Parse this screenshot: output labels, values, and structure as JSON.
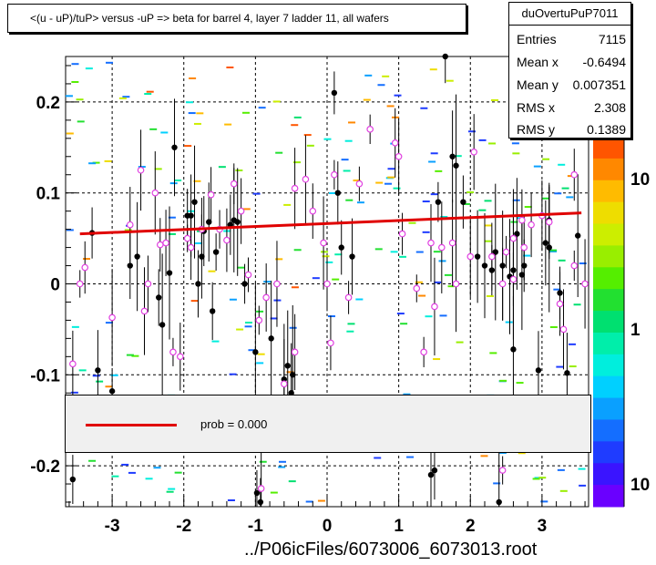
{
  "chart_data": {
    "type": "scatter",
    "title": "<(u - uP)/tuP> versus  -uP => beta for barrel 4, layer 7 ladder 11, all wafers",
    "xlabel": "../P06icFiles/6073006_6073013.root",
    "ylabel": "",
    "xlim": [
      -3.65,
      3.65
    ],
    "ylim": [
      -0.245,
      0.25
    ],
    "xticks": [
      -3,
      -2,
      -1,
      0,
      1,
      2,
      3
    ],
    "yticks": [
      -0.2,
      -0.1,
      0,
      0.1,
      0.2
    ],
    "xtick_labels": [
      "-3",
      "-2",
      "-1",
      "0",
      "1",
      "2",
      "3"
    ],
    "ytick_labels": [
      "-0.2",
      "-0.1",
      "0",
      "0.1",
      "0.2"
    ],
    "grid": true,
    "z_scale": "log",
    "z_tick_labels": [
      "10",
      "1",
      "10"
    ],
    "palette": [
      "#6a00ff",
      "#3a14ff",
      "#1f3cff",
      "#146eff",
      "#0aa0ff",
      "#00d0ff",
      "#00eedd",
      "#00eeaa",
      "#00e070",
      "#22e030",
      "#55ee00",
      "#99ee00",
      "#ccee00",
      "#eedd00",
      "#ffbb00",
      "#ff8800",
      "#ff5500"
    ],
    "fit_line": {
      "x": [
        -3.45,
        3.55
      ],
      "y": [
        0.055,
        0.078
      ],
      "color": "#e00000"
    },
    "black_points": [
      [
        -3.28,
        0.056
      ],
      [
        -3.55,
        -0.215
      ],
      [
        -3.2,
        -0.095
      ],
      [
        -3.0,
        -0.118
      ],
      [
        -2.75,
        0.02
      ],
      [
        -2.65,
        0.03
      ],
      [
        -2.35,
        -0.015
      ],
      [
        -2.3,
        -0.045
      ],
      [
        -2.2,
        0.012
      ],
      [
        -2.13,
        0.15
      ],
      [
        -1.95,
        0.075
      ],
      [
        -1.9,
        0.075
      ],
      [
        -1.85,
        0.09
      ],
      [
        -1.8,
        0.0
      ],
      [
        -1.75,
        0.03
      ],
      [
        -1.72,
        0.058
      ],
      [
        -1.65,
        0.068
      ],
      [
        -1.6,
        -0.03
      ],
      [
        -1.55,
        0.035
      ],
      [
        -1.35,
        0.065
      ],
      [
        -1.3,
        0.07
      ],
      [
        -1.25,
        0.068
      ],
      [
        -1.15,
        0.0
      ],
      [
        -1.0,
        -0.075
      ],
      [
        -0.98,
        -0.23
      ],
      [
        -0.93,
        -0.24
      ],
      [
        -0.78,
        -0.06
      ],
      [
        -0.6,
        -0.105
      ],
      [
        -0.55,
        -0.09
      ],
      [
        -0.5,
        -0.12
      ],
      [
        -0.48,
        -0.1
      ],
      [
        0.1,
        0.21
      ],
      [
        0.15,
        0.1
      ],
      [
        0.2,
        0.04
      ],
      [
        0.35,
        0.03
      ],
      [
        1.45,
        -0.21
      ],
      [
        1.5,
        -0.205
      ],
      [
        1.55,
        0.09
      ],
      [
        1.65,
        0.25
      ],
      [
        1.75,
        0.14
      ],
      [
        1.8,
        0.13
      ],
      [
        1.9,
        0.09
      ],
      [
        2.1,
        0.03
      ],
      [
        2.2,
        0.02
      ],
      [
        2.3,
        0.015
      ],
      [
        2.35,
        0.035
      ],
      [
        2.45,
        0.02
      ],
      [
        2.55,
        0.008
      ],
      [
        2.6,
        0.015
      ],
      [
        2.65,
        0.055
      ],
      [
        2.75,
        0.02
      ],
      [
        2.95,
        -0.095
      ],
      [
        3.05,
        0.045
      ],
      [
        3.1,
        0.07
      ],
      [
        3.25,
        -0.01
      ],
      [
        3.35,
        -0.098
      ],
      [
        3.5,
        0.053
      ],
      [
        2.6,
        -0.072
      ],
      [
        2.72,
        0.01
      ],
      [
        2.4,
        -0.24
      ],
      [
        3.1,
        0.04
      ]
    ],
    "magenta_points": [
      [
        -3.55,
        -0.088
      ],
      [
        -3.45,
        0.0
      ],
      [
        -3.38,
        0.018
      ],
      [
        -3.0,
        -0.037
      ],
      [
        -2.75,
        0.065
      ],
      [
        -2.6,
        0.125
      ],
      [
        -2.55,
        -0.03
      ],
      [
        -2.5,
        0.0
      ],
      [
        -2.4,
        0.1
      ],
      [
        -2.33,
        0.043
      ],
      [
        -2.25,
        0.045
      ],
      [
        -2.15,
        -0.075
      ],
      [
        -2.05,
        -0.08
      ],
      [
        -1.95,
        0.05
      ],
      [
        -1.9,
        0.04
      ],
      [
        -1.75,
        0.06
      ],
      [
        -1.62,
        0.098
      ],
      [
        -1.5,
        0.06
      ],
      [
        -1.4,
        0.048
      ],
      [
        -1.3,
        0.11
      ],
      [
        -1.2,
        0.08
      ],
      [
        -1.1,
        0.01
      ],
      [
        -0.95,
        -0.04
      ],
      [
        -0.92,
        -0.225
      ],
      [
        -0.85,
        -0.015
      ],
      [
        -0.7,
        0.0
      ],
      [
        -0.6,
        -0.11
      ],
      [
        -0.45,
        -0.075
      ],
      [
        -0.45,
        0.105
      ],
      [
        -0.3,
        0.115
      ],
      [
        -0.2,
        0.08
      ],
      [
        -0.05,
        0.045
      ],
      [
        0.0,
        0.0
      ],
      [
        0.05,
        -0.065
      ],
      [
        0.1,
        0.12
      ],
      [
        0.3,
        -0.015
      ],
      [
        0.45,
        0.11
      ],
      [
        0.6,
        0.17
      ],
      [
        0.95,
        0.155
      ],
      [
        1.0,
        0.14
      ],
      [
        1.05,
        0.055
      ],
      [
        1.25,
        -0.005
      ],
      [
        1.35,
        -0.075
      ],
      [
        1.45,
        0.045
      ],
      [
        1.5,
        -0.025
      ],
      [
        1.6,
        0.04
      ],
      [
        1.75,
        0.045
      ],
      [
        1.8,
        0.0
      ],
      [
        2.0,
        0.03
      ],
      [
        2.3,
        0.03
      ],
      [
        2.45,
        0.0
      ],
      [
        2.5,
        0.035
      ],
      [
        2.6,
        0.005
      ],
      [
        2.72,
        0.07
      ],
      [
        2.75,
        0.04
      ],
      [
        2.85,
        0.065
      ],
      [
        3.0,
        0.075
      ],
      [
        3.1,
        0.068
      ],
      [
        3.25,
        -0.022
      ],
      [
        3.3,
        -0.05
      ],
      [
        3.45,
        0.12
      ],
      [
        3.6,
        0.0
      ],
      [
        2.45,
        -0.205
      ],
      [
        3.45,
        0.02
      ],
      [
        2.05,
        0.145
      ],
      [
        2.6,
        0.05
      ]
    ]
  }
}
